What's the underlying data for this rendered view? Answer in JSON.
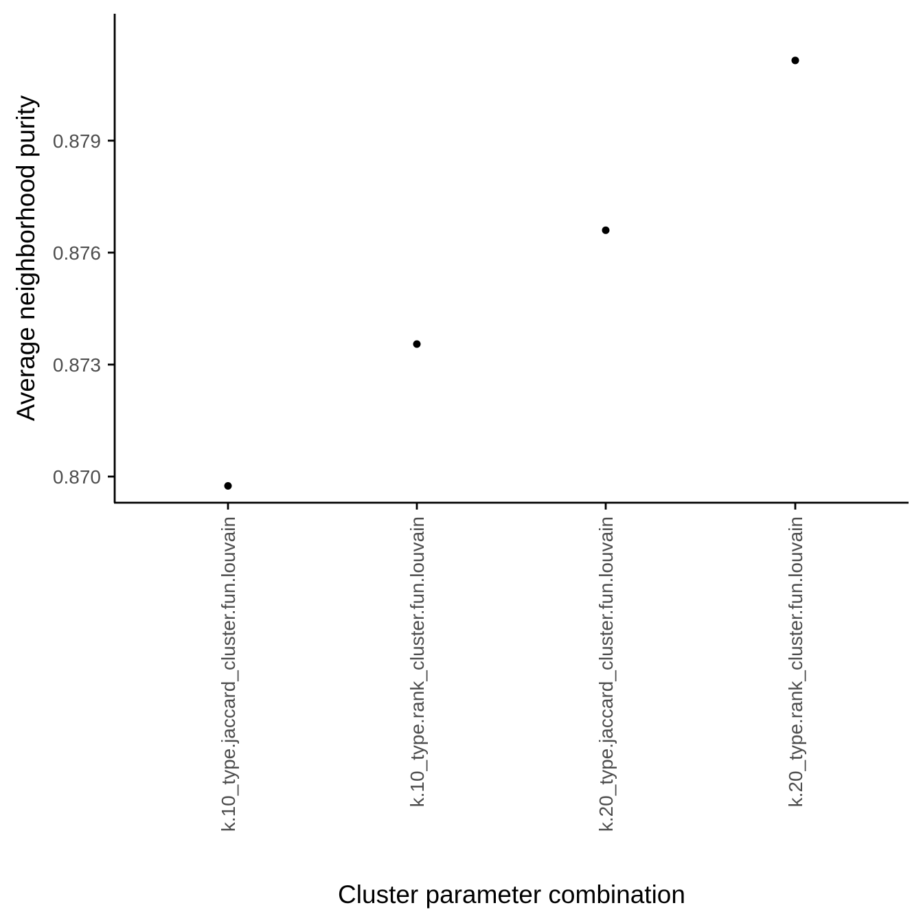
{
  "chart_data": {
    "type": "scatter",
    "title": "",
    "xlabel": "Cluster parameter combination",
    "ylabel": "Average neighborhood purity",
    "categories": [
      "k.10_type.jaccard_cluster.fun.louvain",
      "k.10_type.rank_cluster.fun.louvain",
      "k.20_type.jaccard_cluster.fun.louvain",
      "k.20_type.rank_cluster.fun.louvain"
    ],
    "values": [
      0.86975,
      0.87355,
      0.8766,
      0.88115
    ],
    "yticks": [
      0.87,
      0.873,
      0.876,
      0.879
    ],
    "ytick_labels": [
      "0.870",
      "0.873",
      "0.876",
      "0.879"
    ],
    "ylim": [
      0.8693,
      0.8824
    ],
    "grid": false,
    "legend": "none",
    "colors": {
      "point": "#000000",
      "axis": "#000000",
      "tick_label": "#4d4d4d"
    }
  }
}
